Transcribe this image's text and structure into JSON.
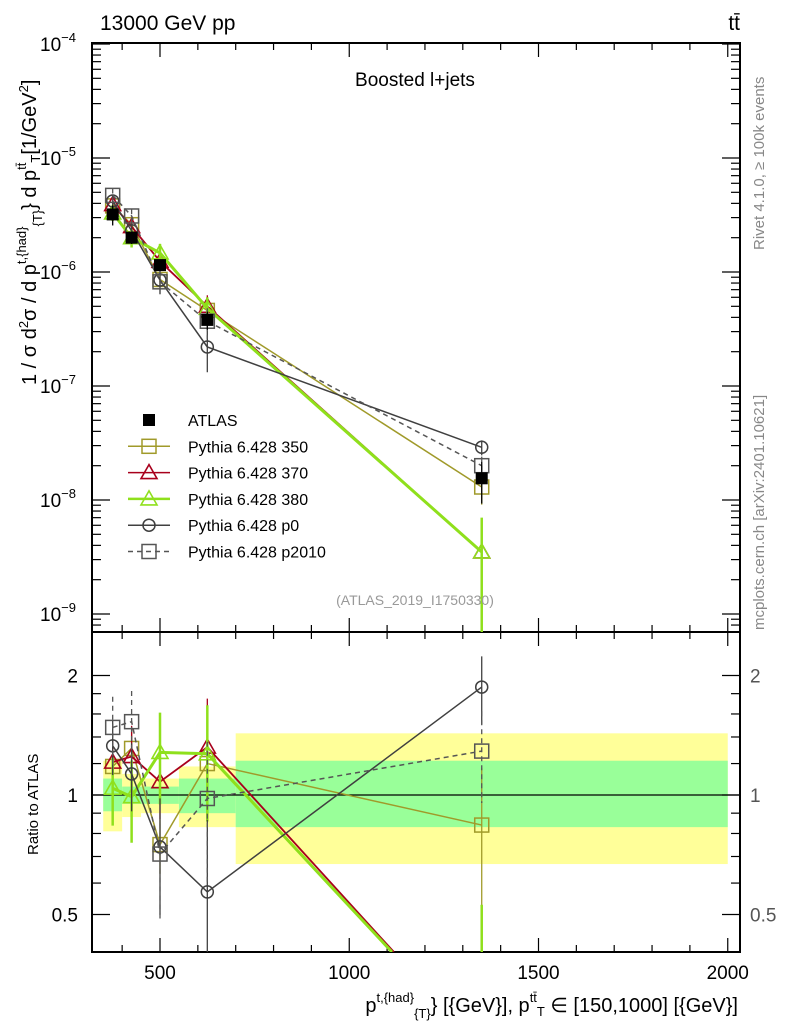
{
  "header": {
    "energy_label": "13000 GeV pp",
    "process_label": "tt̄"
  },
  "side_labels": {
    "rivet": "Rivet 4.1.0, ≥ 100k events",
    "mcplots": "mcplots.cern.ch [arXiv:2401.10621]"
  },
  "colors": {
    "atlas": "#000000",
    "p350": "#a09a2a",
    "p370": "#a8001c",
    "p380": "#8fe01c",
    "p0": "#404040",
    "p2010": "#555555",
    "band_stat": "#99ff99",
    "band_total": "#ffff99"
  },
  "chart_data": [
    {
      "type": "line",
      "title": "Boosted l+jets",
      "analysis_label": "(ATLAS_2019_I1750330)",
      "ylabel_parts": {
        "a": "1 / σ d",
        "b": "2",
        "c": "σ / d p",
        "d": "t,{had}",
        "e": "{T}",
        "f": "} d p",
        "g": "tt̄",
        "h": "T",
        "i": "[1/GeV",
        "j": "2",
        "k": "]"
      },
      "yscale": "log",
      "ylim": [
        1e-09,
        0.0001
      ],
      "ytick_exponents": [
        -9,
        -8,
        -7,
        -6,
        -5,
        -4
      ],
      "xlim": [
        319,
        2032
      ],
      "x": [
        375,
        425,
        500,
        625,
        1350
      ],
      "x_bins": [
        [
          350,
          400
        ],
        [
          400,
          450
        ],
        [
          450,
          550
        ],
        [
          550,
          700
        ],
        [
          700,
          2000
        ]
      ],
      "legend_position": "middle-left",
      "series": [
        {
          "key": "atlas",
          "name": "ATLAS",
          "marker": "filled-square",
          "values": [
            3.2e-06,
            2e-06,
            1.15e-06,
            3.8e-07,
            1.55e-08
          ],
          "rel_err": [
            0.2,
            0.12,
            0.1,
            0.18,
            0.4
          ]
        },
        {
          "key": "p350",
          "name": "Pythia 6.428 350",
          "marker": "open-square",
          "values": [
            3.8e-06,
            2.6e-06,
            8.6e-07,
            4.6e-07,
            1.3e-08
          ],
          "rel_err": [
            0.1,
            0.1,
            0.12,
            0.1,
            0.3
          ]
        },
        {
          "key": "p370",
          "name": "Pythia 6.428 370",
          "marker": "open-triangle",
          "values": [
            3.9e-06,
            2.5e-06,
            1.24e-06,
            5e-07,
            3.5e-09
          ],
          "rel_err": [
            0.1,
            0.15,
            0.15,
            0.25,
            0.6
          ]
        },
        {
          "key": "p380",
          "name": "Pythia 6.428 380",
          "marker": "open-triangle",
          "values": [
            3.3e-06,
            2e-06,
            1.47e-06,
            4.8e-07,
            3.5e-09
          ],
          "rel_err": [
            0.15,
            0.18,
            0.2,
            0.25,
            1.0
          ]
        },
        {
          "key": "p0",
          "name": "Pythia 6.428 p0",
          "marker": "open-circle",
          "values": [
            4.2e-06,
            2.3e-06,
            8.5e-07,
            2.2e-07,
            2.9e-08
          ],
          "rel_err": [
            0.12,
            0.15,
            0.25,
            0.4,
            0.15
          ]
        },
        {
          "key": "p2010",
          "name": "Pythia 6.428 p2010",
          "marker": "open-square-dashed",
          "values": [
            4.7e-06,
            3.1e-06,
            8.2e-07,
            3.7e-07,
            2e-08
          ],
          "rel_err": [
            0.15,
            0.15,
            0.25,
            0.3,
            0.2
          ]
        }
      ]
    },
    {
      "type": "line",
      "ylabel": "Ratio to ATLAS",
      "xlabel_parts": {
        "a": "p",
        "b": "t,{had}",
        "c": "{T}",
        "d": "} [{GeV}], p",
        "e": "tt̄",
        "f": "T",
        "g": " ∈ [150,1000] [{GeV}]"
      },
      "yscale": "log",
      "ylim": [
        0.41,
        2.55
      ],
      "yticks": [
        0.5,
        1,
        2
      ],
      "ytick_labels": [
        "0.5",
        "1",
        "2"
      ],
      "xticks": [
        500,
        1000,
        1500,
        2000
      ],
      "xtick_labels": [
        "500",
        "1000",
        "1500",
        "2000"
      ],
      "bands": {
        "total": [
          [
            0.81,
            1.22
          ],
          [
            0.88,
            1.13
          ],
          [
            0.9,
            1.1
          ],
          [
            0.83,
            1.18
          ],
          [
            0.67,
            1.43
          ]
        ],
        "stat": [
          [
            0.91,
            1.1
          ],
          [
            0.95,
            1.05
          ],
          [
            0.95,
            1.05
          ],
          [
            0.9,
            1.1
          ],
          [
            0.83,
            1.22
          ]
        ]
      },
      "series": [
        {
          "key": "p350",
          "values": [
            1.18,
            1.31,
            0.75,
            1.2,
            0.84
          ]
        },
        {
          "key": "p370",
          "values": [
            1.21,
            1.25,
            1.08,
            1.32,
            0.23
          ]
        },
        {
          "key": "p380",
          "values": [
            1.04,
            0.99,
            1.28,
            1.27,
            0.23
          ]
        },
        {
          "key": "p0",
          "values": [
            1.33,
            1.13,
            0.74,
            0.57,
            1.87
          ]
        },
        {
          "key": "p2010",
          "values": [
            1.48,
            1.53,
            0.71,
            0.98,
            1.29
          ]
        }
      ]
    }
  ]
}
